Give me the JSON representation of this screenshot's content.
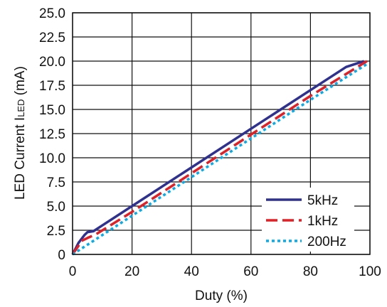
{
  "chart_data": {
    "type": "line",
    "title": "",
    "xlabel": "Duty (%)",
    "ylabel_main": "LED Current I",
    "ylabel_sub": "LED",
    "ylabel_unit": " (mA)",
    "xlim": [
      0,
      100
    ],
    "ylim": [
      0,
      25
    ],
    "xticks": [
      0,
      20,
      40,
      60,
      80,
      100
    ],
    "yticks": [
      "0",
      "2.5",
      "5.0",
      "7.5",
      "10.0",
      "12.5",
      "15.0",
      "17.5",
      "20.0",
      "22.5",
      "25.0"
    ],
    "grid": true,
    "legend_position": "bottom-right",
    "series": [
      {
        "name": "5kHz",
        "color": "#2e3192",
        "style": "solid",
        "x": [
          0,
          2,
          4,
          5,
          6,
          7,
          10,
          20,
          40,
          60,
          80,
          92,
          98
        ],
        "y": [
          0,
          1.2,
          2.0,
          2.3,
          2.35,
          2.4,
          3.0,
          5.0,
          9.0,
          13.0,
          17.0,
          19.4,
          20.0
        ]
      },
      {
        "name": "1kHz",
        "color": "#e31e24",
        "style": "dashed",
        "x": [
          0,
          2,
          3,
          5,
          8,
          20,
          40,
          60,
          80,
          99
        ],
        "y": [
          0,
          0.9,
          1.4,
          1.7,
          2.1,
          4.4,
          8.4,
          12.4,
          16.4,
          20.0
        ]
      },
      {
        "name": "200Hz",
        "color": "#00aeef",
        "style": "dotted",
        "x": [
          0,
          20,
          40,
          60,
          80,
          99
        ],
        "y": [
          0,
          4.0,
          8.0,
          12.0,
          16.0,
          19.7
        ]
      }
    ]
  }
}
